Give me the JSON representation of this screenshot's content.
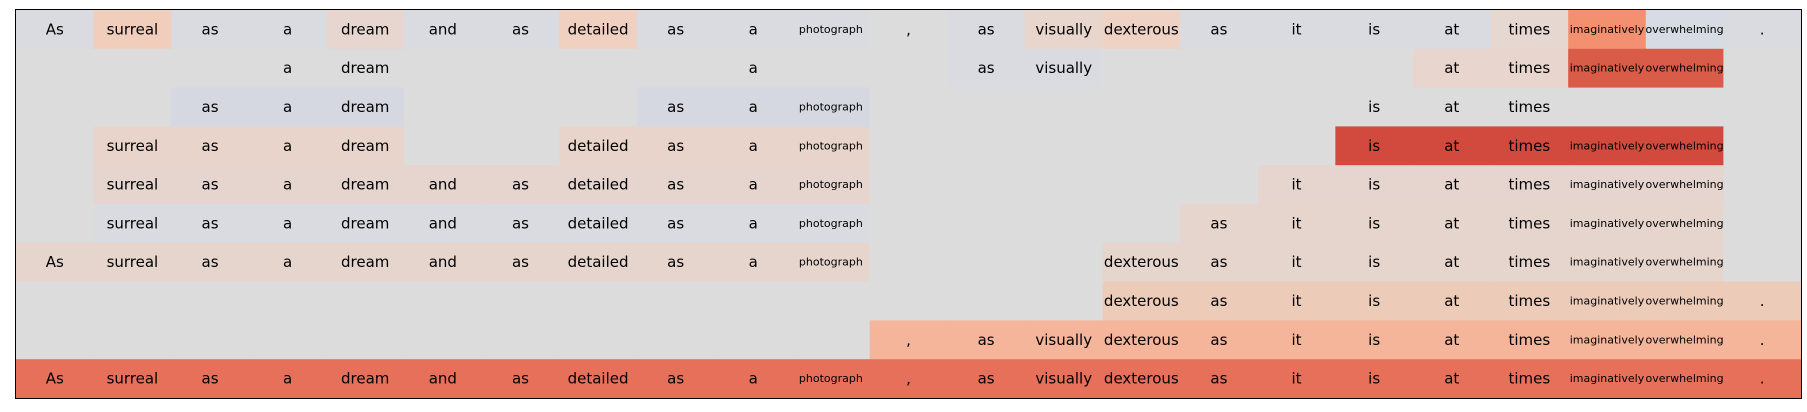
{
  "chart_data": {
    "type": "heatmap",
    "title": "",
    "tokens": [
      "As",
      "surreal",
      "as",
      "a",
      "dream",
      "and",
      "as",
      "detailed",
      "as",
      "a",
      "photograph",
      ",",
      "as",
      "visually",
      "dexterous",
      "as",
      "it",
      "is",
      "at",
      "times",
      "imaginatively",
      "overwhelming",
      "."
    ],
    "rows": [
      {
        "mask": [
          1,
          1,
          1,
          1,
          1,
          1,
          1,
          1,
          1,
          1,
          1,
          1,
          1,
          1,
          1,
          1,
          1,
          1,
          1,
          1,
          1,
          1,
          1
        ],
        "colors": [
          "#d9dbe0",
          "#f1cdbb",
          "#d9dbe0",
          "#d9dbe0",
          "#e7d6cf",
          "#d9dbe0",
          "#d9dbe0",
          "#f0d0c0",
          "#d9dbe0",
          "#d9dbe0",
          "#d9dbe0",
          "#dcdcdc",
          "#d9dbe0",
          "#e8d5cc",
          "#eed3c4",
          "#d9dbe0",
          "#d9dbe0",
          "#d9dbe0",
          "#d9dbe0",
          "#e6d7d0",
          "#f2906f",
          "#d7dce4",
          "#d9dbe0"
        ]
      },
      {
        "mask": [
          0,
          0,
          0,
          1,
          1,
          0,
          0,
          0,
          0,
          1,
          0,
          0,
          1,
          1,
          0,
          0,
          0,
          0,
          1,
          1,
          1,
          1,
          0
        ],
        "colors": [
          "#dcdcdc",
          "#dcdcdc",
          "#dcdcdc",
          "#dcdcdc",
          "#dcdcdc",
          "#dcdcdc",
          "#dcdcdc",
          "#dcdcdc",
          "#dcdcdc",
          "#dcdcdc",
          "#dcdcdc",
          "#dcdcdc",
          "#d9dbe0",
          "#d9dbe0",
          "#dcdcdc",
          "#dcdcdc",
          "#dcdcdc",
          "#dcdcdc",
          "#e8d6ce",
          "#e8d6ce",
          "#d95c48",
          "#d95c48",
          "#dcdcdc"
        ]
      },
      {
        "mask": [
          0,
          0,
          1,
          1,
          1,
          0,
          0,
          0,
          1,
          1,
          1,
          0,
          0,
          0,
          0,
          0,
          0,
          1,
          1,
          1,
          0,
          0,
          0
        ],
        "colors": [
          "#dcdcdc",
          "#dcdcdc",
          "#d5d8e0",
          "#d5d8e0",
          "#d5d8e0",
          "#dcdcdc",
          "#dcdcdc",
          "#dcdcdc",
          "#d5d8e0",
          "#d5d8e0",
          "#d5d8e0",
          "#dcdcdc",
          "#dcdcdc",
          "#dcdcdc",
          "#dcdcdc",
          "#dcdcdc",
          "#dcdcdc",
          "#dcdcdc",
          "#dcdcdc",
          "#dcdcdc",
          "#dcdcdc",
          "#dcdcdc",
          "#dcdcdc"
        ]
      },
      {
        "mask": [
          0,
          1,
          1,
          1,
          1,
          0,
          0,
          1,
          1,
          1,
          1,
          0,
          0,
          0,
          0,
          0,
          0,
          1,
          1,
          1,
          1,
          1,
          0
        ],
        "colors": [
          "#dcdcdc",
          "#e8d4ca",
          "#e8d4ca",
          "#e8d4ca",
          "#e8d4ca",
          "#dcdcdc",
          "#dcdcdc",
          "#e8d4ca",
          "#e8d4ca",
          "#e8d4ca",
          "#e8d4ca",
          "#dcdcdc",
          "#dcdcdc",
          "#dcdcdc",
          "#dcdcdc",
          "#dcdcdc",
          "#dcdcdc",
          "#d24a3e",
          "#d24a3e",
          "#d24a3e",
          "#d24a3e",
          "#d24a3e",
          "#dcdcdc"
        ]
      },
      {
        "mask": [
          0,
          1,
          1,
          1,
          1,
          1,
          1,
          1,
          1,
          1,
          1,
          0,
          0,
          0,
          0,
          0,
          1,
          1,
          1,
          1,
          1,
          1,
          0
        ],
        "colors": [
          "#dcdcdc",
          "#e5d5ce",
          "#e5d5ce",
          "#e5d5ce",
          "#e5d5ce",
          "#e5d5ce",
          "#e5d5ce",
          "#e5d5ce",
          "#e5d5ce",
          "#e5d5ce",
          "#e5d5ce",
          "#dcdcdc",
          "#dcdcdc",
          "#dcdcdc",
          "#dcdcdc",
          "#dcdcdc",
          "#e5d5ce",
          "#e5d5ce",
          "#e5d5ce",
          "#e5d5ce",
          "#e5d5ce",
          "#e5d5ce",
          "#dcdcdc"
        ]
      },
      {
        "mask": [
          0,
          1,
          1,
          1,
          1,
          1,
          1,
          1,
          1,
          1,
          1,
          0,
          0,
          0,
          0,
          1,
          1,
          1,
          1,
          1,
          1,
          1,
          0
        ],
        "colors": [
          "#dcdcdc",
          "#d9dbe0",
          "#d9dbe0",
          "#d9dbe0",
          "#d9dbe0",
          "#d9dbe0",
          "#d9dbe0",
          "#d9dbe0",
          "#d9dbe0",
          "#d9dbe0",
          "#d9dbe0",
          "#dcdcdc",
          "#dcdcdc",
          "#dcdcdc",
          "#dcdcdc",
          "#e6d5cd",
          "#e6d5cd",
          "#e6d5cd",
          "#e6d5cd",
          "#e6d5cd",
          "#e6d5cd",
          "#e6d5cd",
          "#dcdcdc"
        ]
      },
      {
        "mask": [
          1,
          1,
          1,
          1,
          1,
          1,
          1,
          1,
          1,
          1,
          1,
          0,
          0,
          0,
          1,
          1,
          1,
          1,
          1,
          1,
          1,
          1,
          0
        ],
        "colors": [
          "#e6d5cd",
          "#e6d5cd",
          "#e6d5cd",
          "#e6d5cd",
          "#e6d5cd",
          "#e6d5cd",
          "#e6d5cd",
          "#e6d5cd",
          "#e6d5cd",
          "#e6d5cd",
          "#e6d5cd",
          "#dcdcdc",
          "#dcdcdc",
          "#dcdcdc",
          "#e6d5cd",
          "#e6d5cd",
          "#e6d5cd",
          "#e6d5cd",
          "#e6d5cd",
          "#e6d5cd",
          "#e6d5cd",
          "#e6d5cd",
          "#dcdcdc"
        ]
      },
      {
        "mask": [
          0,
          0,
          0,
          0,
          0,
          0,
          0,
          0,
          0,
          0,
          0,
          0,
          0,
          0,
          1,
          1,
          1,
          1,
          1,
          1,
          1,
          1,
          1
        ],
        "colors": [
          "#dcdcdc",
          "#dcdcdc",
          "#dcdcdc",
          "#dcdcdc",
          "#dcdcdc",
          "#dcdcdc",
          "#dcdcdc",
          "#dcdcdc",
          "#dcdcdc",
          "#dcdcdc",
          "#dcdcdc",
          "#dcdcdc",
          "#dcdcdc",
          "#dcdcdc",
          "#eccbb9",
          "#eccbb9",
          "#eccbb9",
          "#eccbb9",
          "#eccbb9",
          "#eccbb9",
          "#eccbb9",
          "#eccbb9",
          "#eccbb9"
        ]
      },
      {
        "mask": [
          0,
          0,
          0,
          0,
          0,
          0,
          0,
          0,
          0,
          0,
          0,
          1,
          1,
          1,
          1,
          1,
          1,
          1,
          1,
          1,
          1,
          1,
          1
        ],
        "colors": [
          "#dcdcdc",
          "#dcdcdc",
          "#dcdcdc",
          "#dcdcdc",
          "#dcdcdc",
          "#dcdcdc",
          "#dcdcdc",
          "#dcdcdc",
          "#dcdcdc",
          "#dcdcdc",
          "#dcdcdc",
          "#f4b59a",
          "#f4b59a",
          "#f4b59a",
          "#f4b59a",
          "#f4b59a",
          "#f4b59a",
          "#f4b59a",
          "#f4b59a",
          "#f4b59a",
          "#f4b59a",
          "#f4b59a",
          "#f4b59a"
        ]
      },
      {
        "mask": [
          1,
          1,
          1,
          1,
          1,
          1,
          1,
          1,
          1,
          1,
          1,
          1,
          1,
          1,
          1,
          1,
          1,
          1,
          1,
          1,
          1,
          1,
          1
        ],
        "colors": [
          "#e7705a",
          "#e7705a",
          "#e7705a",
          "#e7705a",
          "#e7705a",
          "#e7705a",
          "#e7705a",
          "#e7705a",
          "#e7705a",
          "#e7705a",
          "#e7705a",
          "#e7705a",
          "#e7705a",
          "#e7705a",
          "#e7705a",
          "#e7705a",
          "#e7705a",
          "#e7705a",
          "#e7705a",
          "#e7705a",
          "#e7705a",
          "#e7705a",
          "#e7705a"
        ]
      }
    ],
    "small_font_tokens": [
      "photograph",
      "imaginatively",
      "overwhelming"
    ],
    "background_color": "#dcdcdc",
    "grid": false,
    "legend": "none"
  }
}
